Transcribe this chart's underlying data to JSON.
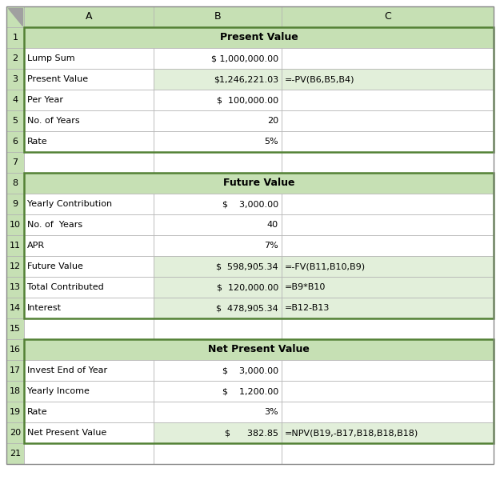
{
  "header_bg": "#c6e0b4",
  "formula_row_bg": "#e2efda",
  "white_bg": "#ffffff",
  "grid_color": "#b0b0b0",
  "section_border_color": "#538135",
  "rows": [
    {
      "row": 1,
      "A": "Present Value",
      "B": "",
      "C": "",
      "section_header": true
    },
    {
      "row": 2,
      "A": "Lump Sum",
      "B": "$ 1,000,000.00",
      "C": "",
      "formula_row": false
    },
    {
      "row": 3,
      "A": "Present Value",
      "B": "$1,246,221.03",
      "C": "=-PV(B6,B5,B4)",
      "formula_row": true
    },
    {
      "row": 4,
      "A": "Per Year",
      "B": "$  100,000.00",
      "C": "",
      "formula_row": false
    },
    {
      "row": 5,
      "A": "No. of Years",
      "B": "20",
      "C": "",
      "formula_row": false
    },
    {
      "row": 6,
      "A": "Rate",
      "B": "5%",
      "C": "",
      "formula_row": false
    },
    {
      "row": 7,
      "A": "",
      "B": "",
      "C": "",
      "formula_row": false
    },
    {
      "row": 8,
      "A": "Future Value",
      "B": "",
      "C": "",
      "section_header": true
    },
    {
      "row": 9,
      "A": "Yearly Contribution",
      "B": "$    3,000.00",
      "C": "",
      "formula_row": false
    },
    {
      "row": 10,
      "A": "No. of  Years",
      "B": "40",
      "C": "",
      "formula_row": false
    },
    {
      "row": 11,
      "A": "APR",
      "B": "7%",
      "C": "",
      "formula_row": false
    },
    {
      "row": 12,
      "A": "Future Value",
      "B": "$  598,905.34",
      "C": "=-FV(B11,B10,B9)",
      "formula_row": true
    },
    {
      "row": 13,
      "A": "Total Contributed",
      "B": "$  120,000.00",
      "C": "=B9*B10",
      "formula_row": true
    },
    {
      "row": 14,
      "A": "Interest",
      "B": "$  478,905.34",
      "C": "=B12-B13",
      "formula_row": true
    },
    {
      "row": 15,
      "A": "",
      "B": "",
      "C": "",
      "formula_row": false
    },
    {
      "row": 16,
      "A": "Net Present Value",
      "B": "",
      "C": "",
      "section_header": true
    },
    {
      "row": 17,
      "A": "Invest End of Year",
      "B": "$    3,000.00",
      "C": "",
      "formula_row": false
    },
    {
      "row": 18,
      "A": "Yearly Income",
      "B": "$    1,200.00",
      "C": "",
      "formula_row": false
    },
    {
      "row": 19,
      "A": "Rate",
      "B": "3%",
      "C": "",
      "formula_row": false
    },
    {
      "row": 20,
      "A": "Net Present Value",
      "B": "$      382.85",
      "C": "=NPV(B19,-B17,B18,B18,B18)",
      "formula_row": true
    }
  ]
}
